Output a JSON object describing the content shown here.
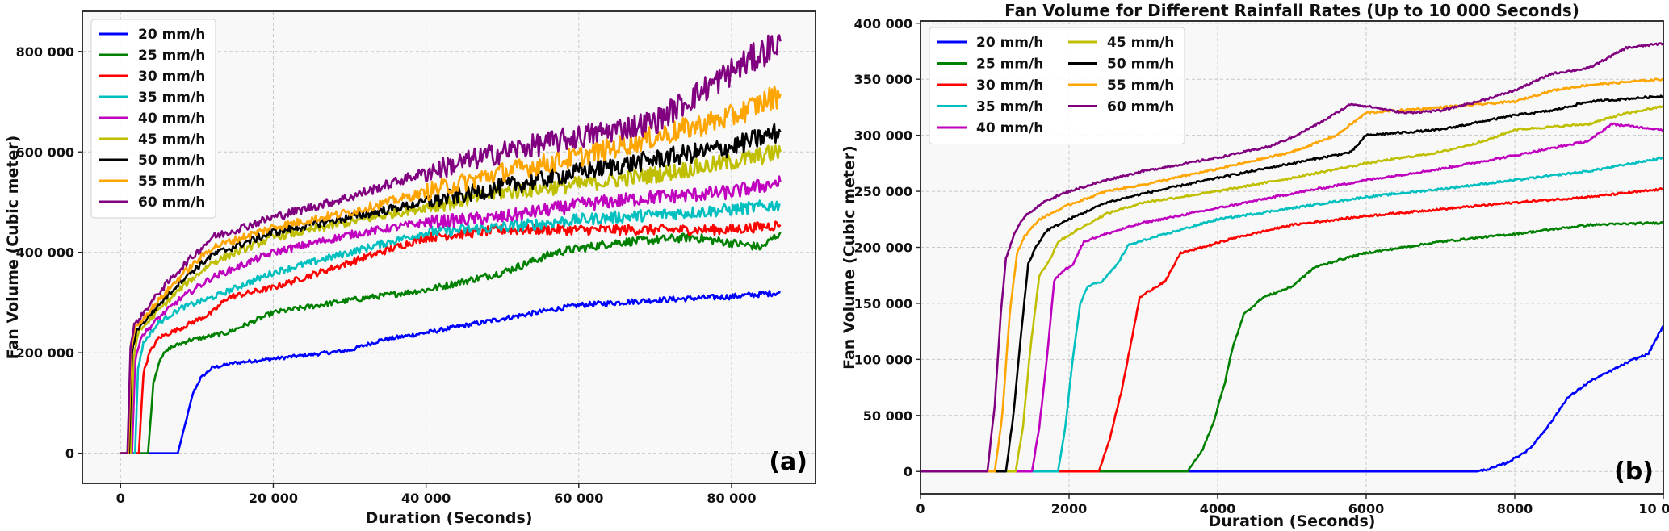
{
  "chart_data": [
    {
      "type": "line",
      "panel_label": "(a)",
      "title": "",
      "xlabel": "Duration (Seconds)",
      "ylabel": "Fan Volume (Cubic meter)",
      "xlim": [
        -5000,
        91000
      ],
      "ylim": [
        -60000,
        880000
      ],
      "xticks": [
        0,
        20000,
        40000,
        60000,
        80000
      ],
      "xtick_labels": [
        "0",
        "20 000",
        "40 000",
        "60 000",
        "80 000"
      ],
      "yticks": [
        0,
        200000,
        400000,
        600000,
        800000
      ],
      "ytick_labels": [
        "0",
        "200 000",
        "400 000",
        "600 000",
        "800 000"
      ],
      "grid": true,
      "legend_position": "top-left",
      "legend_columns": 1,
      "noise": true,
      "series": [
        {
          "name": "20 mm/h",
          "color": "#0000ff",
          "x": [
            0,
            7500,
            8500,
            9500,
            10500,
            12000,
            15000,
            20000,
            30000,
            34000,
            40000,
            50000,
            60000,
            70000,
            80000,
            86400
          ],
          "values": [
            0,
            0,
            60000,
            120000,
            150000,
            170000,
            180000,
            188000,
            205000,
            225000,
            240000,
            268000,
            295000,
            305000,
            312000,
            320000
          ]
        },
        {
          "name": "25 mm/h",
          "color": "#008000",
          "x": [
            0,
            3600,
            4300,
            5200,
            6500,
            9000,
            14000,
            20000,
            30000,
            40000,
            50000,
            57000,
            65000,
            75000,
            84000,
            86400
          ],
          "values": [
            0,
            0,
            140000,
            190000,
            210000,
            225000,
            240000,
            280000,
            305000,
            325000,
            360000,
            400000,
            420000,
            430000,
            410000,
            440000
          ]
        },
        {
          "name": "30 mm/h",
          "color": "#ff0000",
          "x": [
            0,
            2400,
            3000,
            3800,
            5000,
            8000,
            12000,
            14000,
            20000,
            30000,
            40000,
            50000,
            60000,
            70000,
            80000,
            86400
          ],
          "values": [
            0,
            0,
            160000,
            200000,
            230000,
            250000,
            280000,
            310000,
            330000,
            380000,
            430000,
            445000,
            445000,
            445000,
            445000,
            455000
          ]
        },
        {
          "name": "35 mm/h",
          "color": "#00bfbf",
          "x": [
            0,
            1900,
            2300,
            3000,
            5000,
            8000,
            12000,
            20000,
            30000,
            40000,
            50000,
            60000,
            70000,
            80000,
            86400
          ],
          "values": [
            0,
            0,
            170000,
            220000,
            260000,
            290000,
            310000,
            360000,
            400000,
            440000,
            450000,
            465000,
            475000,
            485000,
            495000
          ]
        },
        {
          "name": "40 mm/h",
          "color": "#bf00bf",
          "x": [
            0,
            1500,
            1900,
            2600,
            5000,
            8000,
            12000,
            20000,
            30000,
            40000,
            50000,
            60000,
            70000,
            80000,
            86400
          ],
          "values": [
            0,
            0,
            180000,
            230000,
            270000,
            310000,
            350000,
            400000,
            435000,
            460000,
            470000,
            495000,
            510000,
            520000,
            540000
          ]
        },
        {
          "name": "45 mm/h",
          "color": "#bfbf00",
          "x": [
            0,
            1300,
            1700,
            2300,
            5000,
            8000,
            12000,
            20000,
            30000,
            40000,
            50000,
            60000,
            70000,
            80000,
            86400
          ],
          "values": [
            0,
            0,
            190000,
            240000,
            285000,
            330000,
            380000,
            430000,
            460000,
            490000,
            520000,
            535000,
            555000,
            580000,
            600000
          ]
        },
        {
          "name": "50 mm/h",
          "color": "#000000",
          "x": [
            0,
            1100,
            1500,
            2100,
            5000,
            8000,
            12000,
            20000,
            30000,
            40000,
            50000,
            60000,
            70000,
            80000,
            86400
          ],
          "values": [
            0,
            0,
            200000,
            245000,
            295000,
            345000,
            395000,
            440000,
            470000,
            500000,
            530000,
            560000,
            585000,
            610000,
            640000
          ]
        },
        {
          "name": "55 mm/h",
          "color": "#ffa500",
          "x": [
            0,
            1000,
            1400,
            1900,
            5000,
            8000,
            12000,
            20000,
            30000,
            40000,
            50000,
            60000,
            70000,
            80000,
            86400
          ],
          "values": [
            0,
            0,
            205000,
            250000,
            305000,
            355000,
            410000,
            450000,
            480000,
            520000,
            560000,
            590000,
            630000,
            670000,
            715000
          ]
        },
        {
          "name": "60 mm/h",
          "color": "#800080",
          "x": [
            0,
            900,
            1300,
            1800,
            5000,
            8000,
            12000,
            20000,
            30000,
            40000,
            50000,
            60000,
            70000,
            75000,
            80000,
            86400
          ],
          "values": [
            0,
            0,
            210000,
            255000,
            320000,
            370000,
            430000,
            470000,
            510000,
            560000,
            600000,
            630000,
            660000,
            710000,
            760000,
            820000
          ]
        }
      ]
    },
    {
      "type": "line",
      "panel_label": "(b)",
      "title": "Fan Volume for Different Rainfall Rates (Up to 10 000 Seconds)",
      "xlabel": "Duration (Seconds)",
      "ylabel": "Fan Volume (Cubic meter)",
      "xlim": [
        0,
        10000
      ],
      "ylim": [
        -20000,
        402000
      ],
      "xticks": [
        0,
        2000,
        4000,
        6000,
        8000,
        10000
      ],
      "xtick_labels": [
        "0",
        "2000",
        "4000",
        "6000",
        "8000",
        "10 000"
      ],
      "yticks": [
        0,
        50000,
        100000,
        150000,
        200000,
        250000,
        300000,
        350000,
        400000
      ],
      "ytick_labels": [
        "0",
        "50 000",
        "100 000",
        "150 000",
        "200 000",
        "250 000",
        "300 000",
        "350 000",
        "400 000"
      ],
      "grid": true,
      "legend_position": "top-left",
      "legend_columns": 2,
      "noise": false,
      "series": [
        {
          "name": "20 mm/h",
          "color": "#0000ff",
          "x": [
            0,
            7500,
            7700,
            7900,
            8200,
            8500,
            8700,
            9000,
            9300,
            9600,
            9800,
            9900,
            10000
          ],
          "values": [
            0,
            0,
            3000,
            8000,
            20000,
            45000,
            65000,
            80000,
            90000,
            100000,
            105000,
            118000,
            130000
          ]
        },
        {
          "name": "25 mm/h",
          "color": "#008000",
          "x": [
            0,
            3600,
            3800,
            3950,
            4100,
            4200,
            4350,
            4600,
            5000,
            5300,
            5700,
            6000,
            7000,
            8000,
            9000,
            10000
          ],
          "values": [
            0,
            0,
            20000,
            45000,
            80000,
            110000,
            140000,
            155000,
            165000,
            182000,
            190000,
            195000,
            205000,
            212000,
            220000,
            222000
          ]
        },
        {
          "name": "30 mm/h",
          "color": "#ff0000",
          "x": [
            0,
            2400,
            2550,
            2700,
            2850,
            2950,
            3100,
            3300,
            3500,
            3800,
            4200,
            5000,
            6000,
            7000,
            8000,
            9000,
            10000
          ],
          "values": [
            0,
            0,
            30000,
            70000,
            120000,
            155000,
            162000,
            170000,
            195000,
            200000,
            208000,
            220000,
            228000,
            234000,
            240000,
            245000,
            252000
          ]
        },
        {
          "name": "35 mm/h",
          "color": "#00bfbf",
          "x": [
            0,
            1850,
            1950,
            2050,
            2150,
            2250,
            2450,
            2650,
            2800,
            3200,
            4000,
            5000,
            6000,
            7000,
            8000,
            9000,
            10000
          ],
          "values": [
            0,
            0,
            40000,
            100000,
            150000,
            165000,
            170000,
            185000,
            202000,
            210000,
            225000,
            235000,
            245000,
            252000,
            260000,
            268000,
            280000
          ]
        },
        {
          "name": "40 mm/h",
          "color": "#bf00bf",
          "x": [
            0,
            1500,
            1600,
            1700,
            1800,
            1900,
            2050,
            2200,
            2400,
            3000,
            4000,
            5000,
            6000,
            7000,
            8000,
            9000,
            9300,
            10000
          ],
          "values": [
            0,
            0,
            40000,
            100000,
            170000,
            178000,
            185000,
            205000,
            210000,
            222000,
            235000,
            248000,
            260000,
            270000,
            282000,
            295000,
            310000,
            305000
          ]
        },
        {
          "name": "45 mm/h",
          "color": "#bfbf00",
          "x": [
            0,
            1280,
            1380,
            1480,
            1600,
            1750,
            1850,
            2100,
            2500,
            3000,
            4000,
            5000,
            6000,
            7000,
            7600,
            8000,
            9000,
            9400,
            10000
          ],
          "values": [
            0,
            0,
            40000,
            110000,
            175000,
            190000,
            205000,
            215000,
            230000,
            240000,
            250000,
            262000,
            275000,
            285000,
            295000,
            305000,
            310000,
            318000,
            326000
          ]
        },
        {
          "name": "50 mm/h",
          "color": "#000000",
          "x": [
            0,
            1150,
            1250,
            1350,
            1450,
            1550,
            1700,
            2000,
            2500,
            3000,
            4000,
            5000,
            5800,
            6000,
            7000,
            8000,
            8500,
            9000,
            10000
          ],
          "values": [
            0,
            0,
            50000,
            120000,
            185000,
            200000,
            215000,
            225000,
            240000,
            248000,
            262000,
            275000,
            285000,
            300000,
            305000,
            318000,
            322000,
            330000,
            335000
          ]
        },
        {
          "name": "55 mm/h",
          "color": "#ffa500",
          "x": [
            0,
            1000,
            1100,
            1200,
            1300,
            1400,
            1600,
            2000,
            2500,
            3000,
            4000,
            5000,
            5600,
            6000,
            7000,
            8000,
            8500,
            9000,
            10000
          ],
          "values": [
            0,
            0,
            50000,
            140000,
            195000,
            210000,
            225000,
            238000,
            250000,
            256000,
            270000,
            285000,
            300000,
            320000,
            325000,
            330000,
            340000,
            345000,
            350000
          ]
        },
        {
          "name": "60 mm/h",
          "color": "#800080",
          "x": [
            0,
            900,
            1000,
            1080,
            1150,
            1250,
            1400,
            1700,
            2000,
            2500,
            3000,
            4000,
            4700,
            5000,
            5400,
            5800,
            6100,
            6500,
            7000,
            7500,
            8000,
            8500,
            9000,
            9500,
            10000
          ],
          "values": [
            0,
            0,
            60000,
            140000,
            190000,
            210000,
            228000,
            242000,
            250000,
            260000,
            268000,
            280000,
            290000,
            298000,
            312000,
            328000,
            325000,
            320000,
            322000,
            330000,
            340000,
            355000,
            360000,
            378000,
            382000
          ]
        }
      ]
    }
  ]
}
